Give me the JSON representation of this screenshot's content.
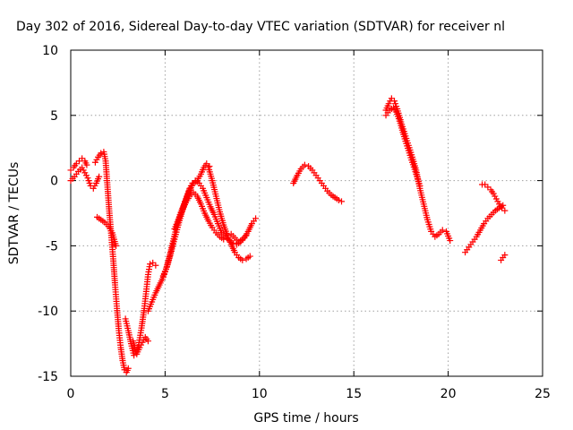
{
  "chart_data": {
    "type": "scatter",
    "title": "Day 302 of 2016, Sidereal Day-to-day VTEC variation (SDTVAR) for receiver nl",
    "xlabel": "GPS time / hours",
    "ylabel": "SDTVAR / TECUs",
    "xlim": [
      0,
      25
    ],
    "ylim": [
      -15,
      10
    ],
    "xticks": [
      0,
      5,
      10,
      15,
      20,
      25
    ],
    "yticks": [
      -15,
      -10,
      -5,
      0,
      5,
      10
    ],
    "xtick_labels": [
      "0",
      "5",
      "10",
      "15",
      "20",
      "25"
    ],
    "ytick_labels": [
      "-15",
      "-10",
      "-5",
      "0",
      "5",
      "10"
    ],
    "grid": true,
    "marker": "plus",
    "color": "#ff0000",
    "series": [
      {
        "x": [
          0.0,
          0.2,
          0.4,
          0.6,
          0.75,
          0.9,
          1.05,
          1.2,
          1.35,
          1.5
        ],
        "y": [
          0.0,
          0.3,
          0.7,
          1.0,
          0.6,
          0.2,
          -0.4,
          -0.6,
          -0.2,
          0.3
        ]
      },
      {
        "x": [
          0.0,
          0.15,
          0.3,
          0.45,
          0.6,
          0.75,
          0.85
        ],
        "y": [
          0.8,
          1.0,
          1.3,
          1.5,
          1.7,
          1.5,
          1.2
        ]
      },
      {
        "x": [
          1.3,
          1.45,
          1.6,
          1.75,
          1.85,
          1.95,
          2.05,
          2.15,
          2.25,
          2.35,
          2.45,
          2.55,
          2.65,
          2.75,
          2.85,
          2.95,
          3.05
        ],
        "y": [
          1.4,
          1.8,
          2.1,
          2.2,
          1.5,
          -0.5,
          -2.5,
          -4.2,
          -6.0,
          -8.0,
          -9.8,
          -11.5,
          -12.8,
          -13.8,
          -14.5,
          -14.7,
          -14.4
        ]
      },
      {
        "x": [
          1.4,
          1.6,
          1.8,
          2.0,
          2.2,
          2.4
        ],
        "y": [
          -2.8,
          -3.0,
          -3.2,
          -3.5,
          -4.0,
          -5.0
        ]
      },
      {
        "x": [
          2.9,
          3.05,
          3.2,
          3.35,
          3.5,
          3.65,
          3.8,
          3.95,
          4.1
        ],
        "y": [
          -10.6,
          -11.5,
          -12.5,
          -13.4,
          -13.3,
          -12.8,
          -12.4,
          -12.0,
          -12.3
        ]
      },
      {
        "x": [
          3.3,
          3.45,
          3.6,
          3.75,
          3.9,
          4.0,
          4.1,
          4.2,
          4.35,
          4.5
        ],
        "y": [
          -12.3,
          -13.1,
          -12.6,
          -11.3,
          -9.8,
          -8.5,
          -7.2,
          -6.4,
          -6.3,
          -6.5
        ]
      },
      {
        "x": [
          4.1,
          4.3,
          4.5,
          4.7,
          4.9,
          5.05,
          5.2,
          5.4,
          5.6,
          5.8,
          6.0,
          6.15,
          6.3,
          6.45
        ],
        "y": [
          -10.0,
          -9.3,
          -8.6,
          -8.0,
          -7.4,
          -6.8,
          -6.0,
          -4.8,
          -3.6,
          -2.6,
          -1.8,
          -1.2,
          -0.6,
          -0.2
        ]
      },
      {
        "x": [
          4.9,
          5.1,
          5.3,
          5.5,
          5.7,
          5.9,
          6.1,
          6.3,
          6.5,
          6.7,
          6.9,
          7.05,
          7.2,
          7.35
        ],
        "y": [
          -7.3,
          -6.6,
          -5.6,
          -4.5,
          -3.4,
          -2.4,
          -1.5,
          -0.7,
          -0.2,
          0.0,
          0.5,
          1.0,
          1.3,
          1.1
        ]
      },
      {
        "x": [
          5.8,
          6.0,
          6.2,
          6.4,
          6.6,
          6.8,
          7.0,
          7.2,
          7.4,
          7.6,
          7.8,
          8.0
        ],
        "y": [
          -2.6,
          -1.9,
          -1.1,
          -0.4,
          0.0,
          -0.2,
          -0.6,
          -1.3,
          -2.0,
          -2.6,
          -3.3,
          -4.0
        ]
      },
      {
        "x": [
          5.5,
          5.7,
          5.9,
          6.1,
          6.3,
          6.5,
          6.7,
          6.9,
          7.1,
          7.3,
          7.5,
          7.7,
          7.9,
          8.1
        ],
        "y": [
          -3.7,
          -3.0,
          -2.3,
          -1.7,
          -1.2,
          -0.9,
          -1.2,
          -1.8,
          -2.5,
          -3.1,
          -3.6,
          -4.0,
          -4.3,
          -4.5
        ]
      },
      {
        "x": [
          7.3,
          7.5,
          7.7,
          7.9,
          8.1,
          8.3,
          8.5,
          8.7,
          8.9,
          9.1,
          9.3,
          9.5
        ],
        "y": [
          1.0,
          0.0,
          -1.2,
          -2.4,
          -3.4,
          -4.2,
          -4.9,
          -5.5,
          -5.9,
          -6.1,
          -6.0,
          -5.8
        ]
      },
      {
        "x": [
          8.0,
          8.2,
          8.4,
          8.6,
          8.8,
          9.0,
          9.2,
          9.4,
          9.6,
          9.8
        ],
        "y": [
          -4.0,
          -4.3,
          -4.6,
          -4.8,
          -4.9,
          -4.7,
          -4.4,
          -3.9,
          -3.3,
          -2.9
        ]
      },
      {
        "x": [
          8.5,
          8.7,
          8.9,
          9.1,
          9.3
        ],
        "y": [
          -4.1,
          -4.4,
          -4.7,
          -4.5,
          -4.2
        ]
      },
      {
        "x": [
          11.8,
          12.0,
          12.2,
          12.4,
          12.6,
          12.8,
          13.0,
          13.2,
          13.4,
          13.6,
          13.8,
          14.0,
          14.2,
          14.35
        ],
        "y": [
          -0.2,
          0.4,
          0.9,
          1.2,
          1.1,
          0.8,
          0.4,
          0.0,
          -0.4,
          -0.8,
          -1.1,
          -1.3,
          -1.5,
          -1.6
        ]
      },
      {
        "x": [
          16.7,
          16.85,
          17.0,
          17.15,
          17.3,
          17.5,
          17.7,
          17.9,
          18.1,
          18.3,
          18.5,
          18.7,
          18.9,
          19.1,
          19.3,
          19.5,
          19.7,
          19.9,
          20.1
        ],
        "y": [
          5.4,
          5.9,
          6.3,
          6.1,
          5.5,
          4.5,
          3.6,
          2.7,
          1.8,
          0.8,
          -0.6,
          -1.8,
          -3.0,
          -3.9,
          -4.3,
          -4.1,
          -3.8,
          -3.9,
          -4.6
        ]
      },
      {
        "x": [
          16.7,
          16.9,
          17.1,
          17.3,
          17.5,
          17.7,
          17.9,
          18.1,
          18.3,
          18.5
        ],
        "y": [
          5.0,
          5.4,
          5.6,
          5.1,
          4.2,
          3.2,
          2.3,
          1.4,
          0.5,
          -0.4
        ]
      },
      {
        "x": [
          20.9,
          21.1,
          21.3,
          21.5,
          21.7,
          21.9,
          22.1,
          22.3,
          22.5,
          22.7,
          22.9
        ],
        "y": [
          -5.5,
          -5.1,
          -4.7,
          -4.3,
          -3.8,
          -3.3,
          -2.9,
          -2.6,
          -2.3,
          -2.1,
          -1.9
        ]
      },
      {
        "x": [
          21.8,
          21.95,
          22.1,
          22.25,
          22.4,
          22.55,
          22.7,
          22.85,
          23.0
        ],
        "y": [
          -0.3,
          -0.3,
          -0.5,
          -0.7,
          -1.0,
          -1.4,
          -1.8,
          -2.1,
          -2.3
        ]
      },
      {
        "x": [
          22.8,
          22.9,
          23.0
        ],
        "y": [
          -6.1,
          -5.9,
          -5.7
        ]
      }
    ]
  }
}
